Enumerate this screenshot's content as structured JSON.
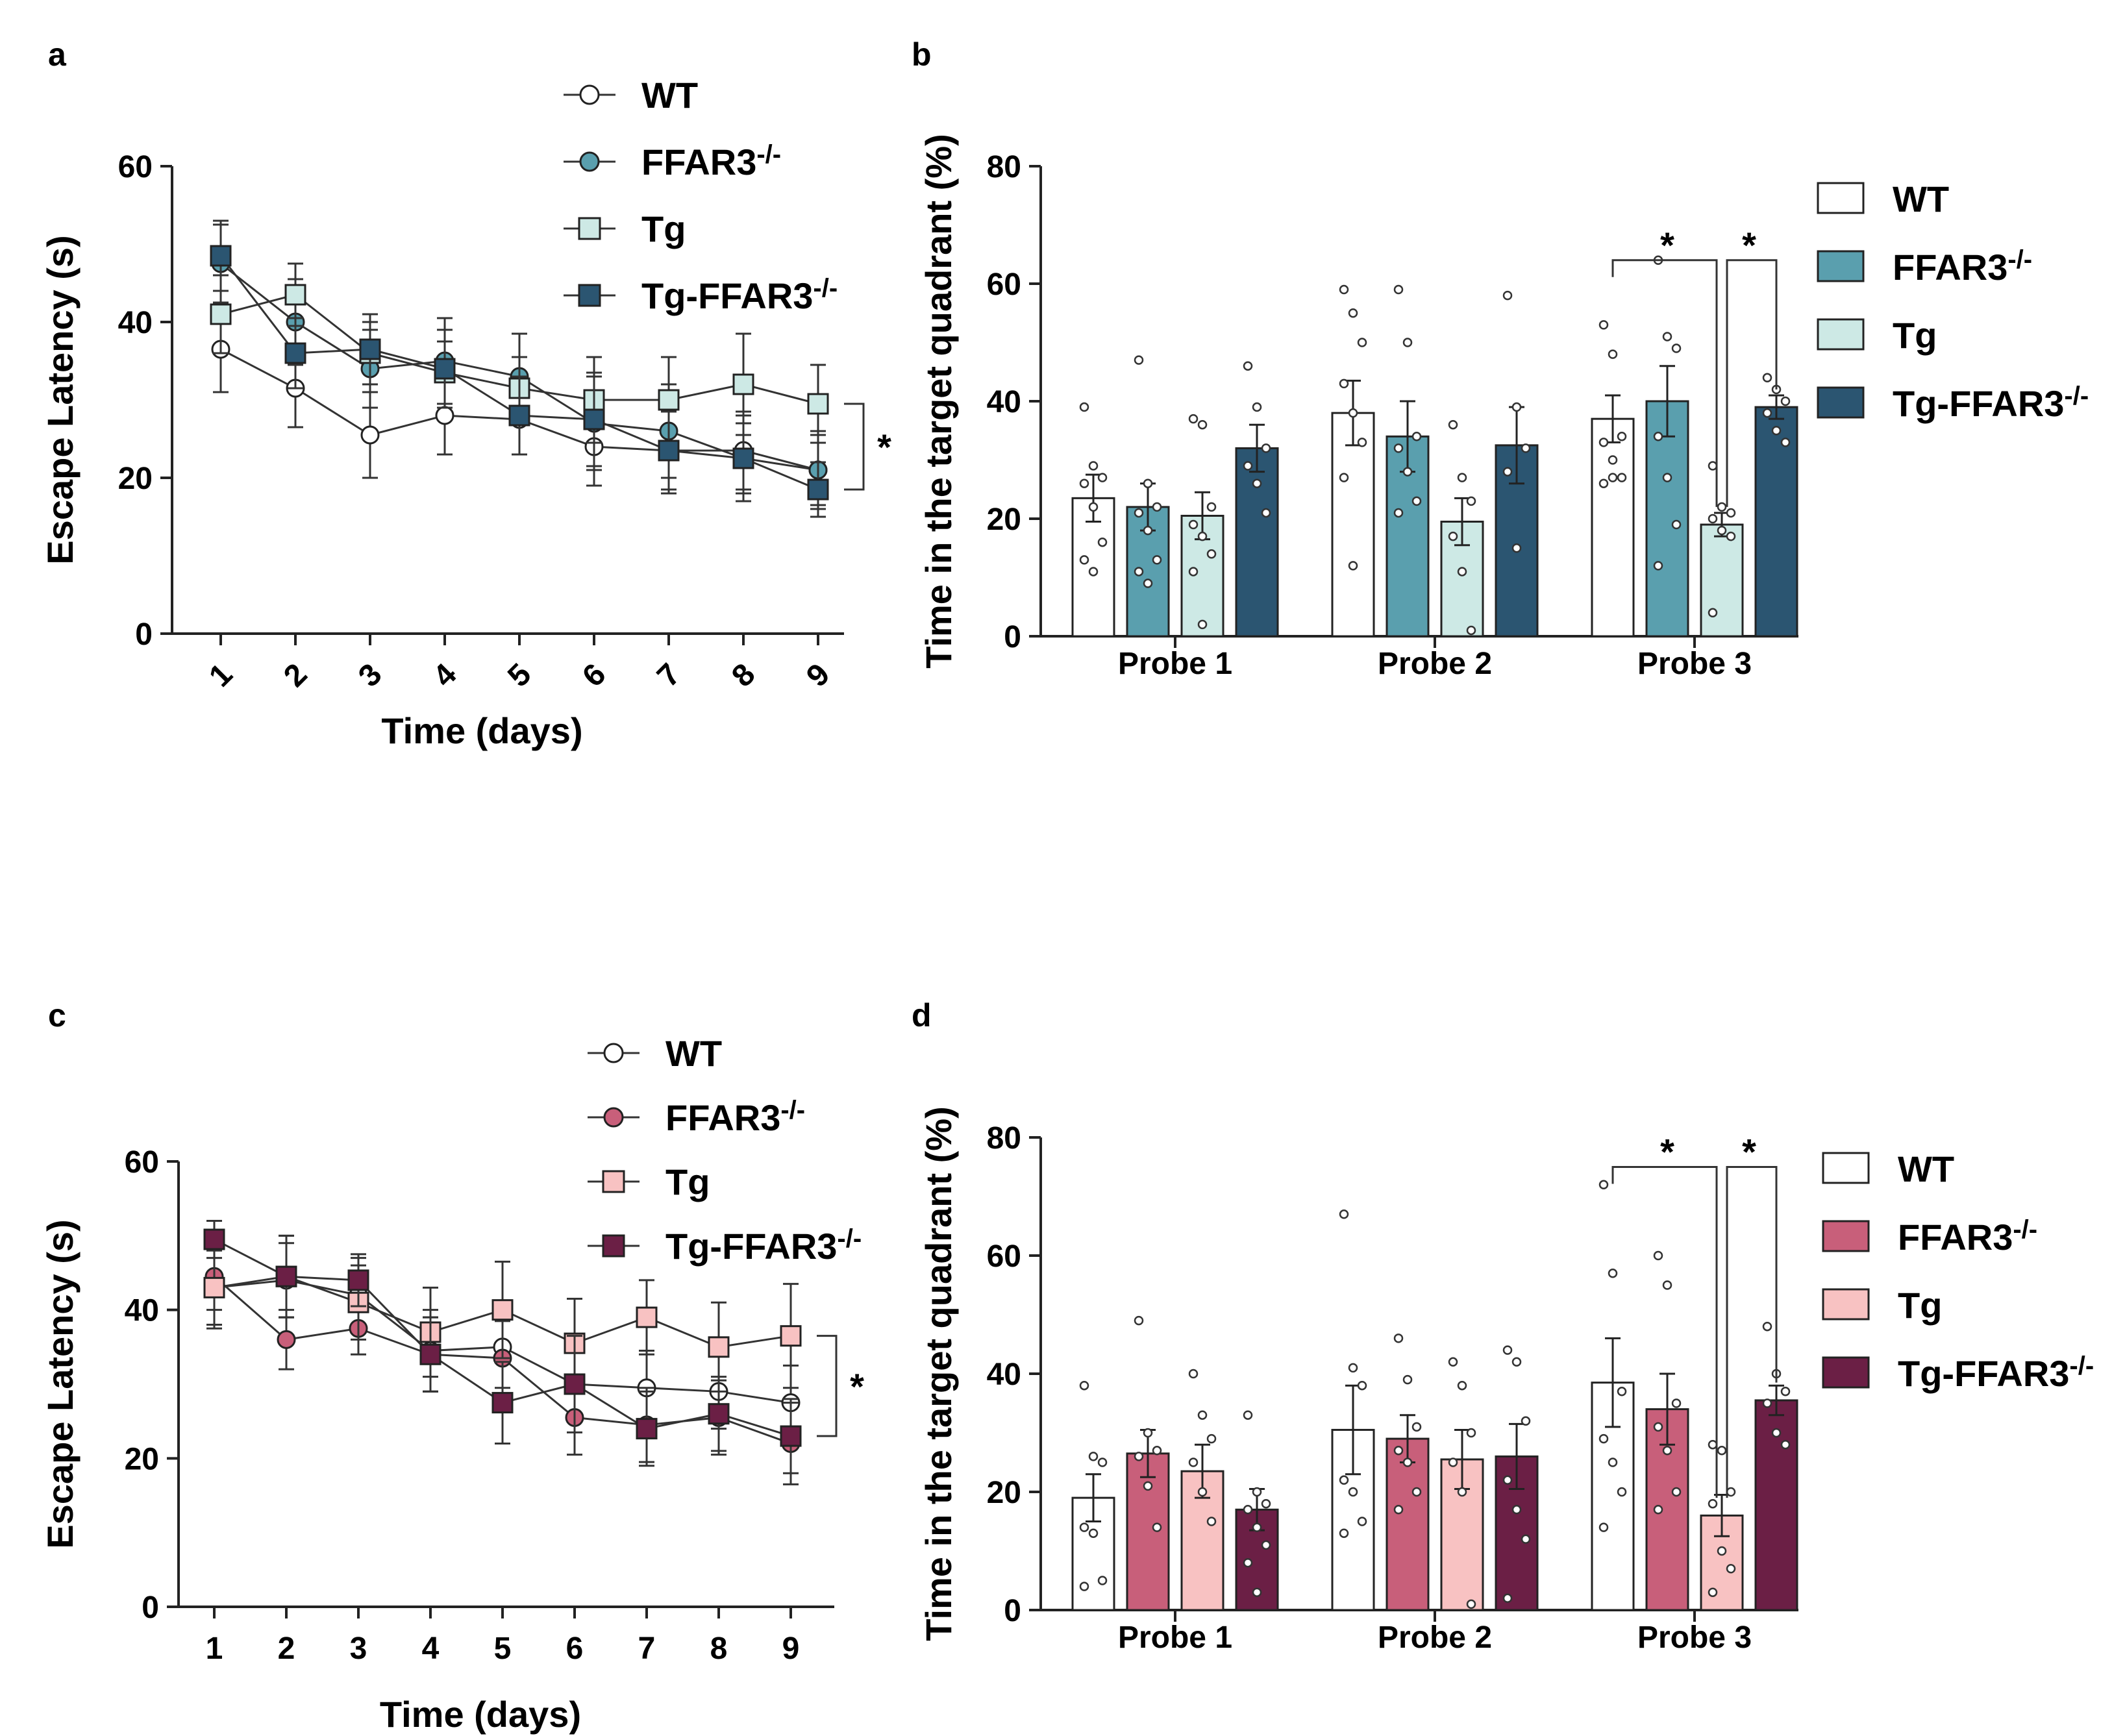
{
  "panels": [
    {
      "letter": "a"
    },
    {
      "letter": "b"
    },
    {
      "letter": "c"
    },
    {
      "letter": "d"
    }
  ],
  "chart_data": [
    {
      "panel": "a",
      "type": "line",
      "title": "",
      "xlabel": "Time (days)",
      "ylabel": "Escape Latency (s)",
      "x": [
        1,
        2,
        3,
        4,
        5,
        6,
        7,
        8,
        9
      ],
      "xticks": [
        "1",
        "2",
        "3",
        "4",
        "5",
        "6",
        "7",
        "8",
        "9"
      ],
      "ylim": [
        0,
        60
      ],
      "yticks": [
        "0",
        "20",
        "40",
        "60"
      ],
      "significance": "*",
      "series": [
        {
          "name": "WT",
          "sup": "",
          "marker": "circle-open",
          "color": "#ffffff",
          "values": [
            36.5,
            31.5,
            25.5,
            28,
            27.5,
            24,
            23.5,
            23.5,
            21
          ],
          "errors": [
            5.5,
            5,
            5.5,
            5,
            4.5,
            5,
            5.5,
            5,
            5
          ]
        },
        {
          "name": "FFAR3",
          "sup": "-/-",
          "marker": "circle",
          "color": "#5a9fae",
          "values": [
            47.5,
            40,
            34,
            35,
            33,
            27,
            26,
            22.5,
            21
          ],
          "errors": [
            5,
            5.5,
            5,
            5.5,
            5.5,
            6,
            6,
            5.5,
            4.5
          ]
        },
        {
          "name": "Tg",
          "sup": "",
          "marker": "square",
          "color": "#cde9e5",
          "values": [
            41,
            43.5,
            36,
            33.5,
            31.5,
            30,
            30,
            32,
            29.5
          ],
          "errors": [
            5,
            4,
            4,
            4,
            4,
            5.5,
            5.5,
            6.5,
            5
          ]
        },
        {
          "name": "Tg-FFAR3",
          "sup": "-/-",
          "marker": "square",
          "color": "#2b5571",
          "values": [
            48.5,
            36,
            36.5,
            34,
            28,
            27.5,
            23.5,
            22.5,
            18.5
          ],
          "errors": [
            4.5,
            4.5,
            4.5,
            5,
            5,
            6,
            5,
            4.5,
            3.5
          ]
        }
      ]
    },
    {
      "panel": "b",
      "type": "bar",
      "title": "",
      "xlabel": "",
      "ylabel": "Time in the target quadrant (%)",
      "categories": [
        "Probe 1",
        "Probe 2",
        "Probe 3"
      ],
      "ylim": [
        0,
        80
      ],
      "yticks": [
        "0",
        "20",
        "40",
        "60",
        "80"
      ],
      "significance": [
        "*",
        "*"
      ],
      "series": [
        {
          "name": "WT",
          "sup": "",
          "color": "#ffffff",
          "values": [
            23.5,
            38,
            37
          ],
          "errors": [
            4,
            5.5,
            4
          ],
          "points": [
            [
              39,
              29,
              27,
              26,
              22,
              16,
              13,
              11
            ],
            [
              59,
              55,
              50,
              43,
              38,
              33,
              27,
              12
            ],
            [
              53,
              48,
              34,
              33,
              30,
              27,
              26,
              27
            ]
          ]
        },
        {
          "name": "FFAR3",
          "sup": "-/-",
          "color": "#5a9fae",
          "values": [
            22,
            34,
            40
          ],
          "errors": [
            4,
            6,
            6
          ],
          "points": [
            [
              47,
              26,
              22,
              21,
              18,
              13,
              11,
              9
            ],
            [
              59,
              50,
              34,
              32,
              28,
              23,
              21
            ],
            [
              64,
              51,
              49,
              34,
              27,
              19,
              12
            ]
          ]
        },
        {
          "name": "Tg",
          "sup": "",
          "color": "#cde9e5",
          "values": [
            20.5,
            19.5,
            19
          ],
          "errors": [
            4,
            4,
            2
          ],
          "points": [
            [
              37,
              36,
              22,
              19,
              17,
              14,
              11,
              2
            ],
            [
              36,
              27,
              23,
              17,
              11,
              1
            ],
            [
              29,
              22,
              21,
              20,
              18,
              17,
              4
            ]
          ]
        },
        {
          "name": "Tg-FFAR3",
          "sup": "-/-",
          "color": "#2b5571",
          "values": [
            32,
            32.5,
            39
          ],
          "errors": [
            4,
            6.5,
            2
          ],
          "points": [
            [
              46,
              39,
              32,
              29,
              26,
              21
            ],
            [
              58,
              39,
              32,
              28,
              15
            ],
            [
              44,
              42,
              40,
              38,
              35,
              33
            ]
          ]
        }
      ]
    },
    {
      "panel": "c",
      "type": "line",
      "title": "",
      "xlabel": "Time (days)",
      "ylabel": "Escape Latency (s)",
      "x": [
        1,
        2,
        3,
        4,
        5,
        6,
        7,
        8,
        9
      ],
      "xticks": [
        "1",
        "2",
        "3",
        "4",
        "5",
        "6",
        "7",
        "8",
        "9"
      ],
      "ylim": [
        0,
        60
      ],
      "yticks": [
        "0",
        "20",
        "40",
        "60"
      ],
      "significance": "*",
      "series": [
        {
          "name": "WT",
          "sup": "",
          "marker": "circle-open",
          "color": "#ffffff",
          "values": [
            43,
            44,
            42,
            34.5,
            35,
            30,
            29.5,
            29,
            27.5
          ],
          "errors": [
            5,
            5,
            5,
            5.5,
            5.5,
            5,
            5,
            5,
            5
          ]
        },
        {
          "name": "FFAR3",
          "sup": "-/-",
          "marker": "circle",
          "color": "#c85f7a",
          "values": [
            44.5,
            36,
            37.5,
            34,
            33.5,
            25.5,
            24.5,
            25.5,
            22
          ],
          "errors": [
            4.5,
            4,
            3.5,
            5,
            5,
            5,
            5,
            5,
            5.5
          ]
        },
        {
          "name": "Tg",
          "sup": "",
          "marker": "square",
          "color": "#f8c2c2",
          "values": [
            43,
            44.5,
            41,
            37,
            40,
            35.5,
            39,
            35,
            36.5
          ],
          "errors": [
            5.5,
            5.5,
            5,
            6,
            6.5,
            6,
            5,
            6,
            7
          ]
        },
        {
          "name": "Tg-FFAR3",
          "sup": "-/-",
          "marker": "square",
          "color": "#6b1f45",
          "values": [
            49.5,
            44.5,
            44,
            34,
            27.5,
            30,
            24,
            26,
            23
          ],
          "errors": [
            2.5,
            5.5,
            3.5,
            5,
            5.5,
            6.5,
            5,
            5,
            5
          ]
        }
      ]
    },
    {
      "panel": "d",
      "type": "bar",
      "title": "",
      "xlabel": "",
      "ylabel": "Time in the target quadrant (%)",
      "categories": [
        "Probe 1",
        "Probe 2",
        "Probe 3"
      ],
      "ylim": [
        0,
        80
      ],
      "yticks": [
        "0",
        "20",
        "40",
        "60",
        "80"
      ],
      "significance": [
        "*",
        "*"
      ],
      "series": [
        {
          "name": "WT",
          "sup": "",
          "color": "#ffffff",
          "values": [
            19,
            30.5,
            38.5
          ],
          "errors": [
            4,
            7.5,
            7.5
          ],
          "points": [
            [
              38,
              26,
              25,
              14,
              13,
              5,
              4
            ],
            [
              67,
              41,
              38,
              22,
              20,
              15,
              13
            ],
            [
              72,
              57,
              37,
              29,
              25,
              20,
              14
            ]
          ]
        },
        {
          "name": "FFAR3",
          "sup": "-/-",
          "color": "#c85f7a",
          "values": [
            26.5,
            29,
            34
          ],
          "errors": [
            4,
            4,
            6
          ],
          "points": [
            [
              49,
              30,
              27,
              26,
              21,
              14
            ],
            [
              46,
              39,
              31,
              27,
              25,
              20,
              17
            ],
            [
              60,
              55,
              35,
              31,
              27,
              20,
              17
            ]
          ]
        },
        {
          "name": "Tg",
          "sup": "",
          "color": "#f8c2c2",
          "values": [
            23.5,
            25.5,
            16
          ],
          "errors": [
            4.5,
            5,
            3.5
          ],
          "points": [
            [
              40,
              33,
              29,
              25,
              20,
              15
            ],
            [
              42,
              38,
              30,
              25,
              20,
              1
            ],
            [
              28,
              27,
              20,
              18,
              10,
              7,
              3
            ]
          ]
        },
        {
          "name": "Tg-FFAR3",
          "sup": "-/-",
          "color": "#6b1f45",
          "values": [
            17,
            26,
            35.5
          ],
          "errors": [
            3.5,
            5.5,
            2.5
          ],
          "points": [
            [
              33,
              20,
              18,
              17,
              14,
              11,
              8,
              3
            ],
            [
              44,
              42,
              32,
              22,
              17,
              12,
              2
            ],
            [
              48,
              40,
              37,
              35,
              30,
              28
            ]
          ]
        }
      ]
    }
  ]
}
